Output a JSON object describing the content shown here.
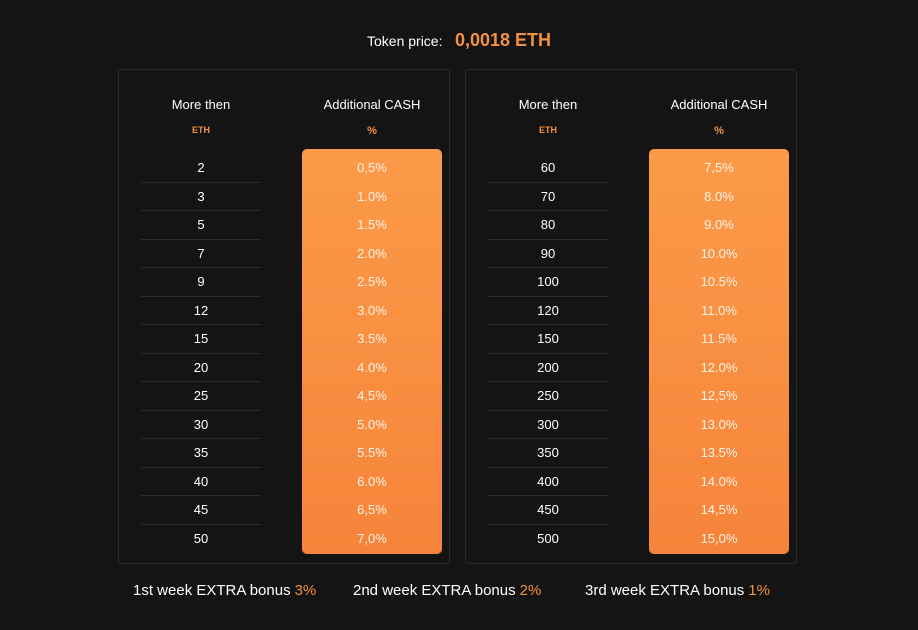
{
  "header": {
    "token_label": "Token price:",
    "token_value": "0,0018 ETH"
  },
  "tables": [
    {
      "col1_title": "More then",
      "col1_unit": "ETH",
      "col2_title": "Additional CASH",
      "col2_unit": "%",
      "rows": [
        {
          "amount": "2",
          "percent": "0,5%"
        },
        {
          "amount": "3",
          "percent": "1.0%"
        },
        {
          "amount": "5",
          "percent": "1.5%"
        },
        {
          "amount": "7",
          "percent": "2.0%"
        },
        {
          "amount": "9",
          "percent": "2.5%"
        },
        {
          "amount": "12",
          "percent": "3.0%"
        },
        {
          "amount": "15",
          "percent": "3.5%"
        },
        {
          "amount": "20",
          "percent": "4.0%"
        },
        {
          "amount": "25",
          "percent": "4,5%"
        },
        {
          "amount": "30",
          "percent": "5.0%"
        },
        {
          "amount": "35",
          "percent": "5.5%"
        },
        {
          "amount": "40",
          "percent": "6.0%"
        },
        {
          "amount": "45",
          "percent": "6,5%"
        },
        {
          "amount": "50",
          "percent": "7,0%"
        }
      ]
    },
    {
      "col1_title": "More then",
      "col1_unit": "ETH",
      "col2_title": "Additional CASH",
      "col2_unit": "%",
      "rows": [
        {
          "amount": "60",
          "percent": "7,5%"
        },
        {
          "amount": "70",
          "percent": "8.0%"
        },
        {
          "amount": "80",
          "percent": "9.0%"
        },
        {
          "amount": "90",
          "percent": "10.0%"
        },
        {
          "amount": "100",
          "percent": "10.5%"
        },
        {
          "amount": "120",
          "percent": "11.0%"
        },
        {
          "amount": "150",
          "percent": "11.5%"
        },
        {
          "amount": "200",
          "percent": "12.0%"
        },
        {
          "amount": "250",
          "percent": "12,5%"
        },
        {
          "amount": "300",
          "percent": "13.0%"
        },
        {
          "amount": "350",
          "percent": "13.5%"
        },
        {
          "amount": "400",
          "percent": "14.0%"
        },
        {
          "amount": "450",
          "percent": "14,5%"
        },
        {
          "amount": "500",
          "percent": "15,0%"
        }
      ]
    }
  ],
  "bonuses": [
    {
      "label": "1st week EXTRA bonus",
      "value": "3%"
    },
    {
      "label": "2nd week EXTRA bonus",
      "value": "2%"
    },
    {
      "label": "3rd week EXTRA bonus",
      "value": "1%"
    }
  ],
  "colors": {
    "background": "#141414",
    "accent": "#f5913e",
    "bar_top": "#fb9a49",
    "bar_bottom": "#f6843a"
  }
}
